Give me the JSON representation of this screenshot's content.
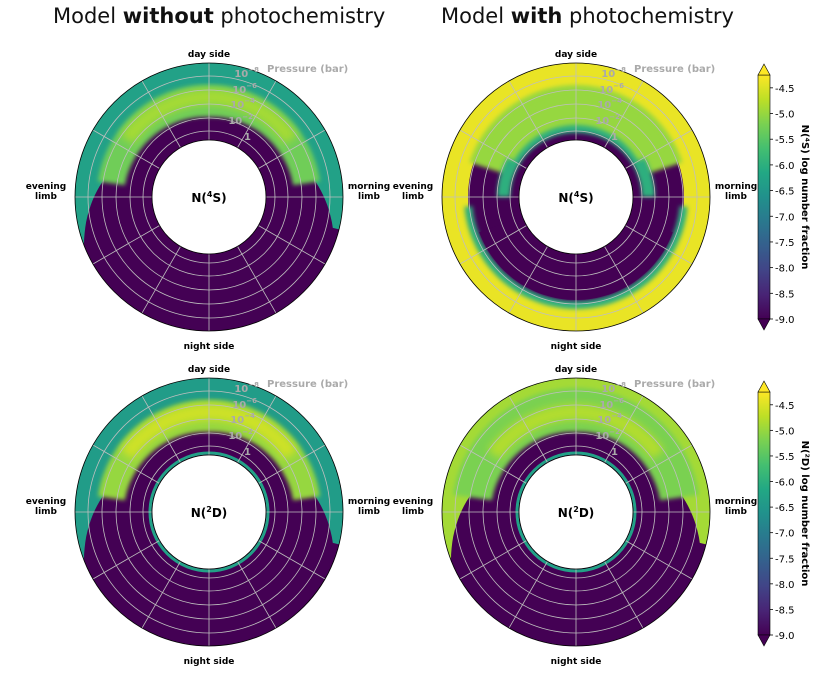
{
  "titles": {
    "left": {
      "pre": "Model ",
      "bold": "without",
      "post": " photochemistry"
    },
    "right": {
      "pre": "Model ",
      "bold": "with",
      "post": " photochemistry"
    }
  },
  "labels": {
    "day": "day side",
    "night": "night side",
    "evening": [
      "evening",
      "limb"
    ],
    "morning": [
      "morning",
      "limb"
    ],
    "pressure_title": "Pressure (bar)",
    "pressure_ticks": [
      {
        "base": "10",
        "exp": "−8"
      },
      {
        "base": "10",
        "exp": "−6"
      },
      {
        "base": "10",
        "exp": "−4"
      },
      {
        "base": "10",
        "exp": "−2"
      },
      {
        "base": "1",
        "exp": ""
      }
    ]
  },
  "chart_data": [
    {
      "type": "heatmap",
      "projection": "polar",
      "title": "Model without photochemistry",
      "species": "N(⁴S)",
      "sectors": {
        "dayside_high_alt": -6.3,
        "dayside_band": -5.3,
        "deep_atmosphere": -9.0,
        "nightside": -9.0
      },
      "colorbar": null
    },
    {
      "type": "heatmap",
      "projection": "polar",
      "title": "Model with photochemistry",
      "species": "N(⁴S)",
      "sectors": {
        "outer_shell": -4.4,
        "dayside_band": -5.0,
        "deep_atmosphere": -9.0,
        "nightside": -9.0
      },
      "colorbar": {
        "label": "N(⁴S) log number fraction",
        "range": [
          -9.0,
          -4.25
        ],
        "ticks": [
          -4.5,
          -5.0,
          -5.5,
          -6.0,
          -6.5,
          -7.0,
          -7.5,
          -8.0,
          -8.5,
          -9.0
        ],
        "extend": "both"
      }
    },
    {
      "type": "heatmap",
      "projection": "polar",
      "title": "Model without photochemistry",
      "species": "N(²D)",
      "sectors": {
        "dayside_high_alt": -6.4,
        "dayside_band": -5.0,
        "deep_atmosphere": -9.0,
        "nightside": -9.0
      },
      "colorbar": null
    },
    {
      "type": "heatmap",
      "projection": "polar",
      "title": "Model with photochemistry",
      "species": "N(²D)",
      "sectors": {
        "dayside_high_alt": -4.9,
        "dayside_band": -5.2,
        "deep_atmosphere": -9.0,
        "nightside": -9.0
      },
      "colorbar": {
        "label": "N(²D) log number fraction",
        "range": [
          -9.0,
          -4.25
        ],
        "ticks": [
          -4.5,
          -5.0,
          -5.5,
          -6.0,
          -6.5,
          -7.0,
          -7.5,
          -8.0,
          -8.5,
          -9.0
        ],
        "extend": "both"
      }
    }
  ],
  "colors": {
    "dark_purple": "#440154",
    "deep_purple": "#46155c",
    "blue": "#3b528b",
    "teal": "#2a7e8a",
    "green": "#5ec962",
    "yellow_green": "#a5db36",
    "yellow": "#e1e623",
    "grid": "#bfbfbf",
    "pressure_label": "#aaaaaa"
  }
}
